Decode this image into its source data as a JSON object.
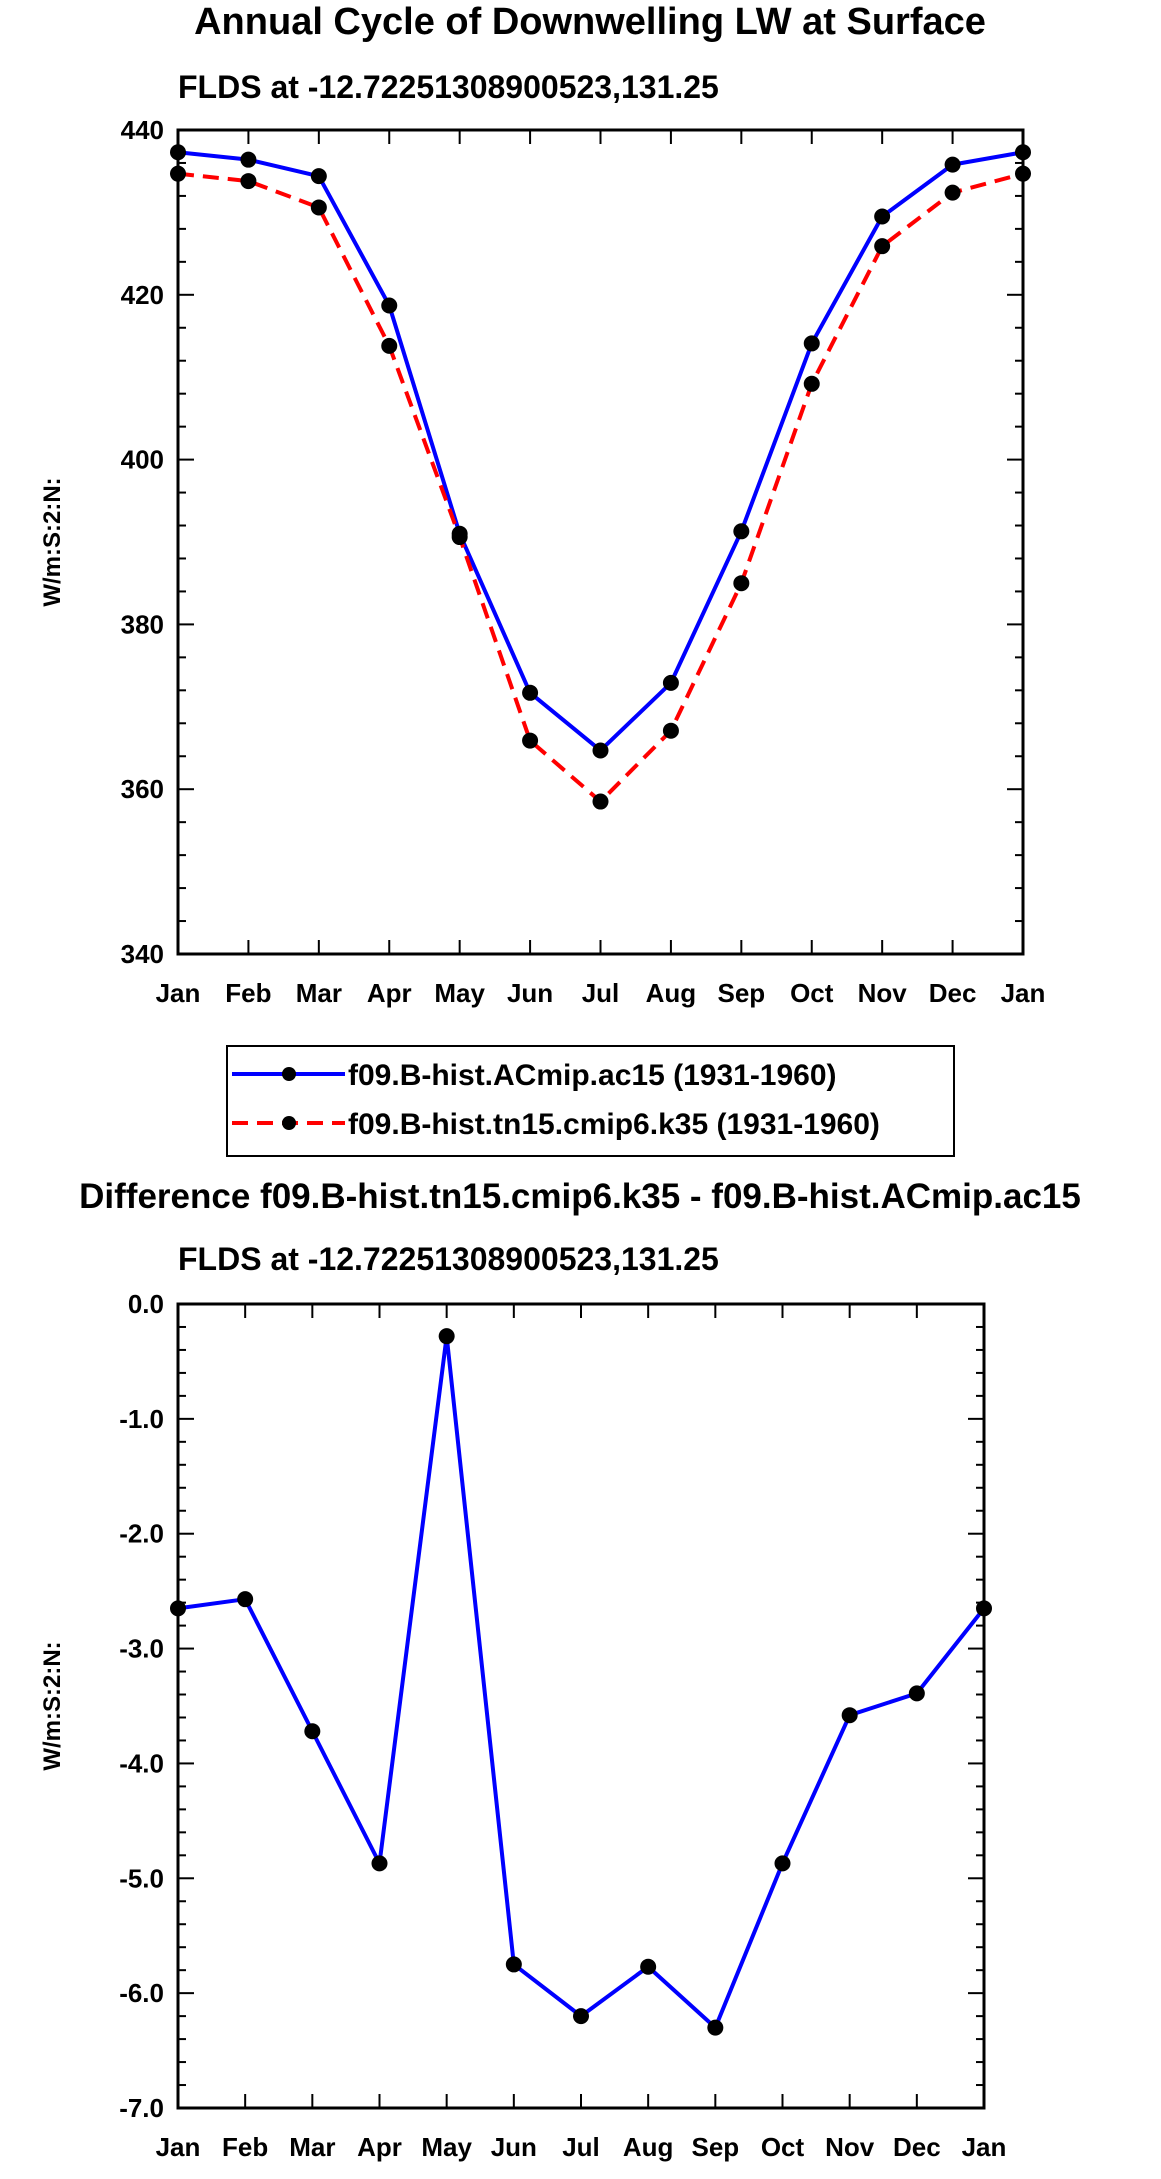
{
  "chart_data": [
    {
      "type": "line",
      "title": "Annual Cycle of Downwelling LW at Surface",
      "subtitle": "FLDS at -12.72251308900523,131.25",
      "xlabel": "",
      "ylabel": "W/m:S:2:N:",
      "categories": [
        "Jan",
        "Feb",
        "Mar",
        "Apr",
        "May",
        "Jun",
        "Jul",
        "Aug",
        "Sep",
        "Oct",
        "Nov",
        "Dec",
        "Jan"
      ],
      "ylim": [
        340,
        440
      ],
      "yticks": [
        "340",
        "360",
        "380",
        "400",
        "420",
        "440"
      ],
      "series": [
        {
          "name": "f09.B-hist.ACmip.ac15 (1931-1960)",
          "color": "#0000ff",
          "dash": "solid",
          "values": [
            437.3,
            436.4,
            434.4,
            418.7,
            391.0,
            371.7,
            364.7,
            372.9,
            391.3,
            414.1,
            429.5,
            435.8,
            437.3
          ]
        },
        {
          "name": "f09.B-hist.tn15.cmip6.k35 (1931-1960)",
          "color": "#ff0000",
          "dash": "dashed",
          "values": [
            434.7,
            433.8,
            430.6,
            413.8,
            390.6,
            365.9,
            358.5,
            367.1,
            385.0,
            409.2,
            425.9,
            432.4,
            434.7
          ]
        }
      ],
      "legend": "bottom"
    },
    {
      "type": "line",
      "title": "Difference f09.B-hist.tn15.cmip6.k35 - f09.B-hist.ACmip.ac15",
      "subtitle": "FLDS at -12.72251308900523,131.25",
      "xlabel": "",
      "ylabel": "W/m:S:2:N:",
      "categories": [
        "Jan",
        "Feb",
        "Mar",
        "Apr",
        "May",
        "Jun",
        "Jul",
        "Aug",
        "Sep",
        "Oct",
        "Nov",
        "Dec",
        "Jan"
      ],
      "ylim": [
        -7.0,
        0.0
      ],
      "yticks": [
        "0.0",
        "-1.0",
        "-2.0",
        "-3.0",
        "-4.0",
        "-5.0",
        "-6.0",
        "-7.0"
      ],
      "series": [
        {
          "name": "difference",
          "color": "#0000ff",
          "dash": "solid",
          "values": [
            -2.65,
            -2.57,
            -3.72,
            -4.87,
            -0.28,
            -5.75,
            -6.2,
            -5.77,
            -6.3,
            -4.87,
            -3.58,
            -3.39,
            -2.65
          ]
        }
      ]
    }
  ]
}
